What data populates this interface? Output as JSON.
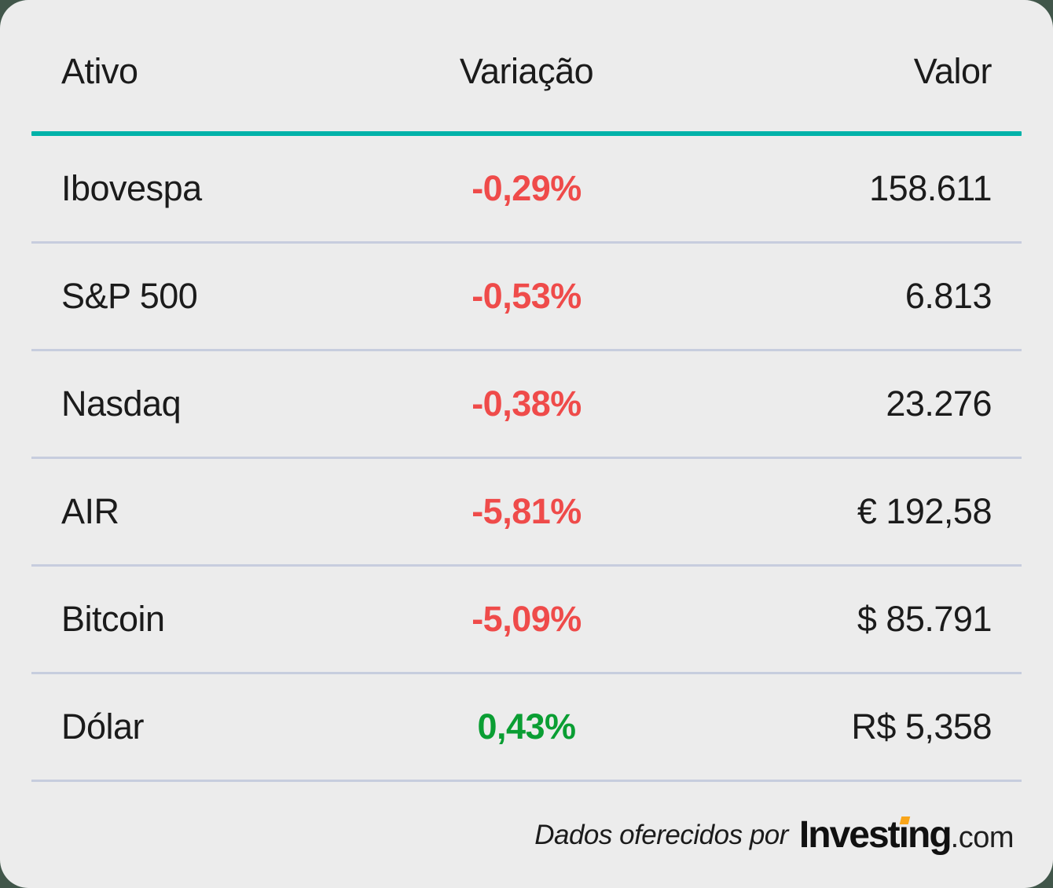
{
  "chart_data": {
    "type": "table",
    "columns": [
      "Ativo",
      "Variação",
      "Valor"
    ],
    "rows": [
      [
        "Ibovespa",
        "-0,29%",
        "158.611"
      ],
      [
        "S&P 500",
        "-0,53%",
        "6.813"
      ],
      [
        "Nasdaq",
        "-0,38%",
        "23.276"
      ],
      [
        "AIR",
        "-5,81%",
        "€ 192,58"
      ],
      [
        "Bitcoin",
        "-5,09%",
        "$ 85.791"
      ],
      [
        "Dólar",
        "0,43%",
        "R$ 5,358"
      ]
    ]
  },
  "footer": {
    "attribution": "Dados oferecidos por",
    "logo": {
      "prefix": "Invest",
      "dotless_i": "ı",
      "suffix": "ng",
      "domain": ".com"
    }
  },
  "colors": {
    "page_background": "#41564a",
    "card_background": "#ececec",
    "text": "#1b1b1b",
    "header_rule_teal": "#00b2a9",
    "row_separator": "#c7cdde",
    "negative_red": "#ef4b4a",
    "positive_green": "#0a9e33",
    "logo_orange": "#f9a51a"
  }
}
